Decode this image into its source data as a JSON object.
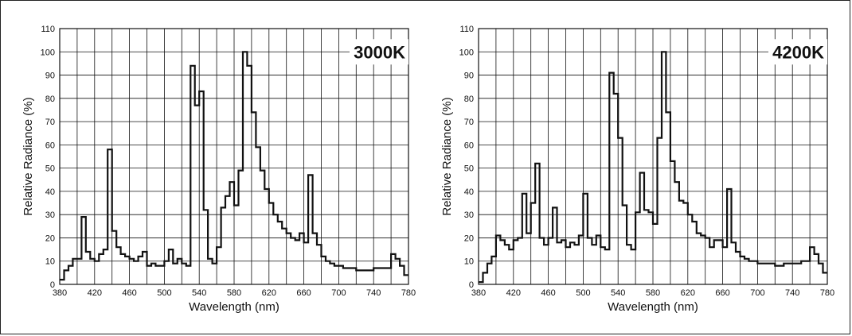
{
  "chart_data": [
    {
      "type": "line",
      "label": "3000K",
      "xlabel": "Wavelength (nm)",
      "ylabel": "Relative Radiance (%)",
      "xlim": [
        380,
        780
      ],
      "ylim": [
        0,
        110
      ],
      "xticks": [
        380,
        420,
        460,
        500,
        540,
        580,
        620,
        660,
        700,
        740,
        780
      ],
      "yticks": [
        0,
        10,
        20,
        30,
        40,
        50,
        60,
        70,
        80,
        90,
        100,
        110
      ],
      "grid": true,
      "series": [
        {
          "step": 5,
          "x": [
            380,
            385,
            390,
            395,
            400,
            405,
            410,
            415,
            420,
            425,
            430,
            435,
            440,
            445,
            450,
            455,
            460,
            465,
            470,
            475,
            480,
            485,
            490,
            495,
            500,
            505,
            510,
            515,
            520,
            525,
            530,
            535,
            540,
            545,
            550,
            555,
            560,
            565,
            570,
            575,
            580,
            585,
            590,
            595,
            600,
            605,
            610,
            615,
            620,
            625,
            630,
            635,
            640,
            645,
            650,
            655,
            660,
            665,
            670,
            675,
            680,
            685,
            690,
            695,
            700,
            705,
            710,
            715,
            720,
            725,
            730,
            735,
            740,
            745,
            750,
            755,
            760,
            765,
            770,
            775
          ],
          "y": [
            2,
            6,
            8,
            11,
            11,
            29,
            14,
            11,
            10,
            13,
            15,
            58,
            23,
            16,
            13,
            12,
            11,
            10,
            12,
            14,
            8,
            9,
            8,
            8,
            10,
            15,
            9,
            11,
            9,
            8,
            94,
            77,
            83,
            32,
            11,
            9,
            16,
            33,
            38,
            44,
            34,
            49,
            100,
            94,
            74,
            59,
            49,
            41,
            35,
            30,
            27,
            24,
            22,
            20,
            19,
            22,
            18,
            47,
            22,
            17,
            12,
            10,
            9,
            8,
            8,
            7,
            7,
            7,
            6,
            6,
            6,
            6,
            7,
            7,
            7,
            7,
            13,
            11,
            8,
            4
          ]
        }
      ]
    },
    {
      "type": "line",
      "label": "4200K",
      "xlabel": "Wavelength (nm)",
      "ylabel": "Relative Radiance (%)",
      "xlim": [
        380,
        780
      ],
      "ylim": [
        0,
        110
      ],
      "xticks": [
        380,
        420,
        460,
        500,
        540,
        580,
        620,
        660,
        700,
        740,
        780
      ],
      "yticks": [
        0,
        10,
        20,
        30,
        40,
        50,
        60,
        70,
        80,
        90,
        100,
        110
      ],
      "grid": true,
      "series": [
        {
          "step": 5,
          "x": [
            380,
            385,
            390,
            395,
            400,
            405,
            410,
            415,
            420,
            425,
            430,
            435,
            440,
            445,
            450,
            455,
            460,
            465,
            470,
            475,
            480,
            485,
            490,
            495,
            500,
            505,
            510,
            515,
            520,
            525,
            530,
            535,
            540,
            545,
            550,
            555,
            560,
            565,
            570,
            575,
            580,
            585,
            590,
            595,
            600,
            605,
            610,
            615,
            620,
            625,
            630,
            635,
            640,
            645,
            650,
            655,
            660,
            665,
            670,
            675,
            680,
            685,
            690,
            695,
            700,
            705,
            710,
            715,
            720,
            725,
            730,
            735,
            740,
            745,
            750,
            755,
            760,
            765,
            770,
            775
          ],
          "y": [
            1,
            5,
            9,
            12,
            21,
            19,
            17,
            15,
            19,
            20,
            39,
            22,
            35,
            52,
            20,
            17,
            20,
            33,
            18,
            19,
            16,
            18,
            17,
            21,
            39,
            20,
            17,
            21,
            16,
            15,
            91,
            82,
            63,
            34,
            17,
            15,
            31,
            48,
            32,
            31,
            26,
            63,
            100,
            74,
            53,
            44,
            36,
            35,
            30,
            27,
            22,
            21,
            20,
            16,
            19,
            19,
            16,
            41,
            18,
            14,
            12,
            11,
            10,
            10,
            9,
            9,
            9,
            9,
            8,
            8,
            9,
            9,
            9,
            9,
            10,
            10,
            16,
            13,
            9,
            5
          ]
        }
      ]
    }
  ]
}
